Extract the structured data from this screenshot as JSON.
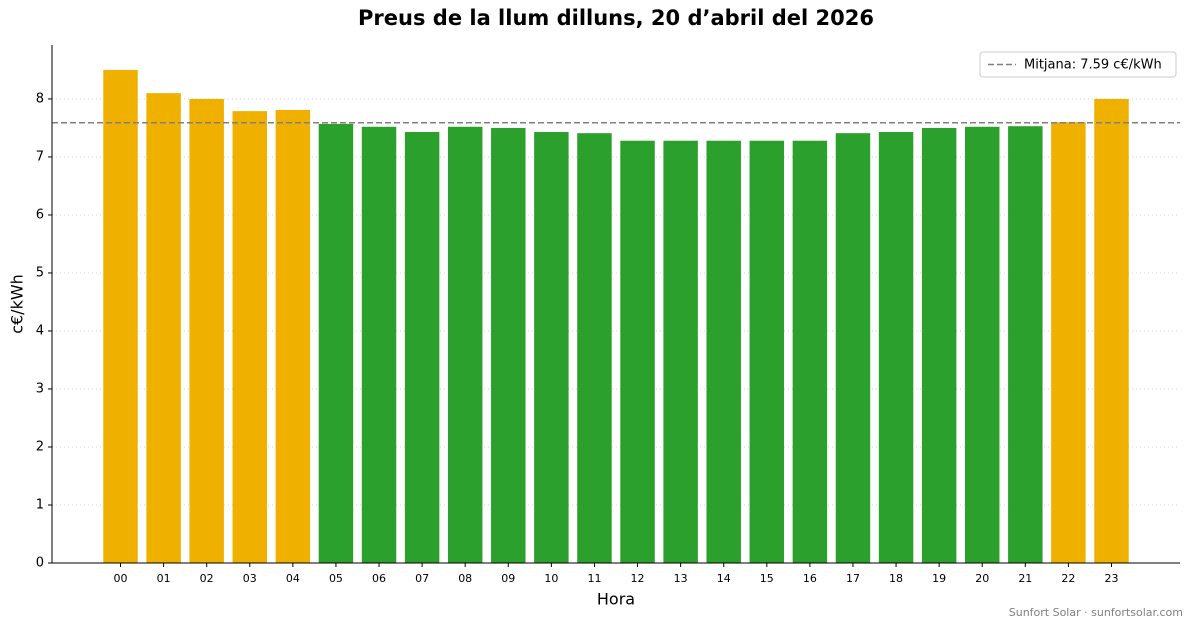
{
  "chart_data": {
    "type": "bar",
    "title": "Preus de la llum dilluns, 20 d’abril del 2026",
    "x_label": "Hora",
    "y_label": "c€/kWh",
    "footer": "Sunfort Solar · sunfortsolar.com",
    "categories": [
      "00",
      "01",
      "02",
      "03",
      "04",
      "05",
      "06",
      "07",
      "08",
      "09",
      "10",
      "11",
      "12",
      "13",
      "14",
      "15",
      "16",
      "17",
      "18",
      "19",
      "20",
      "21",
      "22",
      "23"
    ],
    "values": [
      8.5,
      8.1,
      8.0,
      7.79,
      7.81,
      7.57,
      7.52,
      7.43,
      7.52,
      7.5,
      7.43,
      7.41,
      7.28,
      7.28,
      7.28,
      7.28,
      7.28,
      7.41,
      7.43,
      7.5,
      7.52,
      7.53,
      7.6,
      8.0
    ],
    "colors": [
      "#f0b000",
      "#f0b000",
      "#f0b000",
      "#f0b000",
      "#f0b000",
      "#2ca02c",
      "#2ca02c",
      "#2ca02c",
      "#2ca02c",
      "#2ca02c",
      "#2ca02c",
      "#2ca02c",
      "#2ca02c",
      "#2ca02c",
      "#2ca02c",
      "#2ca02c",
      "#2ca02c",
      "#2ca02c",
      "#2ca02c",
      "#2ca02c",
      "#2ca02c",
      "#2ca02c",
      "#f0b000",
      "#f0b000"
    ],
    "mean": {
      "value": 7.59,
      "label": "Mitjana: 7.59 c€/kWh",
      "color": "#808080"
    },
    "ylim": [
      0,
      8.93
    ],
    "yticks": [
      0,
      1,
      2,
      3,
      4,
      5,
      6,
      7,
      8
    ],
    "grid": true,
    "legend": "upper right"
  }
}
